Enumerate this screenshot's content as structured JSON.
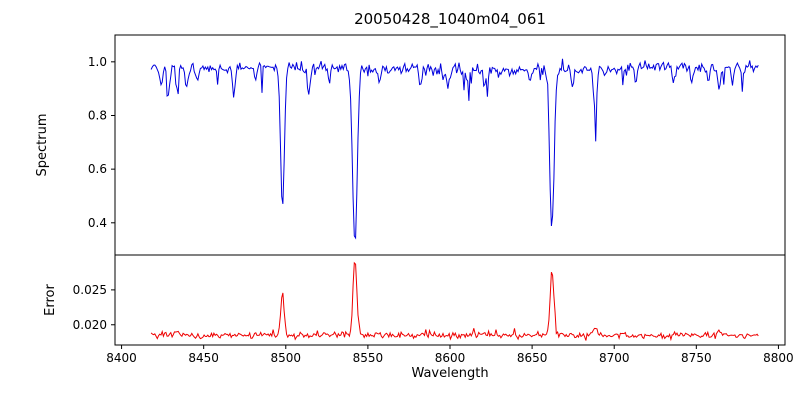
{
  "chart": {
    "background": "#ffffff",
    "frame_color": "#000000"
  },
  "chart_data": [
    {
      "type": "line",
      "title": "20050428_1040m04_061",
      "xlabel": "Wavelength",
      "ylabel": "Spectrum",
      "xlim": [
        8396,
        8804
      ],
      "ylim": [
        0.28,
        1.1
      ],
      "grid": false,
      "legend": "none",
      "x_ticks": [
        {
          "value": 8400,
          "label": "8400"
        },
        {
          "value": 8450,
          "label": "8450"
        },
        {
          "value": 8500,
          "label": "8500"
        },
        {
          "value": 8550,
          "label": "8550"
        },
        {
          "value": 8600,
          "label": "8600"
        },
        {
          "value": 8650,
          "label": "8650"
        },
        {
          "value": 8700,
          "label": "8700"
        },
        {
          "value": 8750,
          "label": "8750"
        },
        {
          "value": 8800,
          "label": "8800"
        }
      ],
      "y_ticks": [
        {
          "value": 0.4,
          "label": "0.4"
        },
        {
          "value": 0.6,
          "label": "0.6"
        },
        {
          "value": 0.8,
          "label": "0.8"
        },
        {
          "value": 1.0,
          "label": "1.0"
        }
      ],
      "series": [
        {
          "name": "spectrum",
          "color": "#0000dd",
          "x_start": 8418,
          "x_end": 8788,
          "x_step": 0.75,
          "continuum": 0.975,
          "noise_sigma": 0.011,
          "spike_probability": 0.05,
          "spike_max_depth": 0.1,
          "absorption_lines": [
            {
              "center": 8498.0,
              "depth": 0.52,
              "sigma": 1.1
            },
            {
              "center": 8542.1,
              "depth": 0.66,
              "sigma": 1.4
            },
            {
              "center": 8662.1,
              "depth": 0.61,
              "sigma": 1.3
            },
            {
              "center": 8424.2,
              "depth": 0.06,
              "sigma": 0.8
            },
            {
              "center": 8428.5,
              "depth": 0.12,
              "sigma": 0.8
            },
            {
              "center": 8434.0,
              "depth": 0.1,
              "sigma": 0.8
            },
            {
              "center": 8439.6,
              "depth": 0.08,
              "sigma": 0.8
            },
            {
              "center": 8446.4,
              "depth": 0.05,
              "sigma": 0.8
            },
            {
              "center": 8468.4,
              "depth": 0.1,
              "sigma": 0.9
            },
            {
              "center": 8481.5,
              "depth": 0.05,
              "sigma": 0.8
            },
            {
              "center": 8514.1,
              "depth": 0.09,
              "sigma": 0.9
            },
            {
              "center": 8526.7,
              "depth": 0.06,
              "sigma": 0.8
            },
            {
              "center": 8556.8,
              "depth": 0.05,
              "sigma": 0.8
            },
            {
              "center": 8582.3,
              "depth": 0.06,
              "sigma": 0.8
            },
            {
              "center": 8598.8,
              "depth": 0.06,
              "sigma": 0.8
            },
            {
              "center": 8611.0,
              "depth": 0.05,
              "sigma": 0.8
            },
            {
              "center": 8621.2,
              "depth": 0.06,
              "sigma": 0.8
            },
            {
              "center": 8648.5,
              "depth": 0.05,
              "sigma": 0.8
            },
            {
              "center": 8674.8,
              "depth": 0.06,
              "sigma": 0.8
            },
            {
              "center": 8688.6,
              "depth": 0.17,
              "sigma": 1.0
            },
            {
              "center": 8713.2,
              "depth": 0.05,
              "sigma": 0.8
            },
            {
              "center": 8736.0,
              "depth": 0.06,
              "sigma": 0.8
            },
            {
              "center": 8747.2,
              "depth": 0.06,
              "sigma": 0.8
            },
            {
              "center": 8757.0,
              "depth": 0.05,
              "sigma": 0.8
            },
            {
              "center": 8764.0,
              "depth": 0.09,
              "sigma": 0.9
            },
            {
              "center": 8772.0,
              "depth": 0.05,
              "sigma": 0.8
            }
          ]
        }
      ]
    },
    {
      "type": "line",
      "ylabel": "Error",
      "xlim": [
        8396,
        8804
      ],
      "ylim": [
        0.0171,
        0.03
      ],
      "grid": false,
      "legend": "none",
      "y_ticks": [
        {
          "value": 0.02,
          "label": "0.020"
        },
        {
          "value": 0.025,
          "label": "0.025"
        }
      ],
      "series": [
        {
          "name": "error",
          "color": "#ee0000",
          "x_start": 8418,
          "x_end": 8788,
          "x_step": 0.75,
          "baseline": 0.0185,
          "noise_sigma": 0.00022,
          "spike_probability": 0.03,
          "spike_max_height": 0.0009,
          "peaks": [
            {
              "center": 8498.0,
              "height": 0.006,
              "sigma": 1.0
            },
            {
              "center": 8542.1,
              "height": 0.0105,
              "sigma": 1.2
            },
            {
              "center": 8662.1,
              "height": 0.0095,
              "sigma": 1.1
            },
            {
              "center": 8688.6,
              "height": 0.0012,
              "sigma": 1.0
            },
            {
              "center": 8434.0,
              "height": 0.0008,
              "sigma": 0.9
            },
            {
              "center": 8764.0,
              "height": 0.0008,
              "sigma": 0.9
            }
          ]
        }
      ]
    }
  ]
}
